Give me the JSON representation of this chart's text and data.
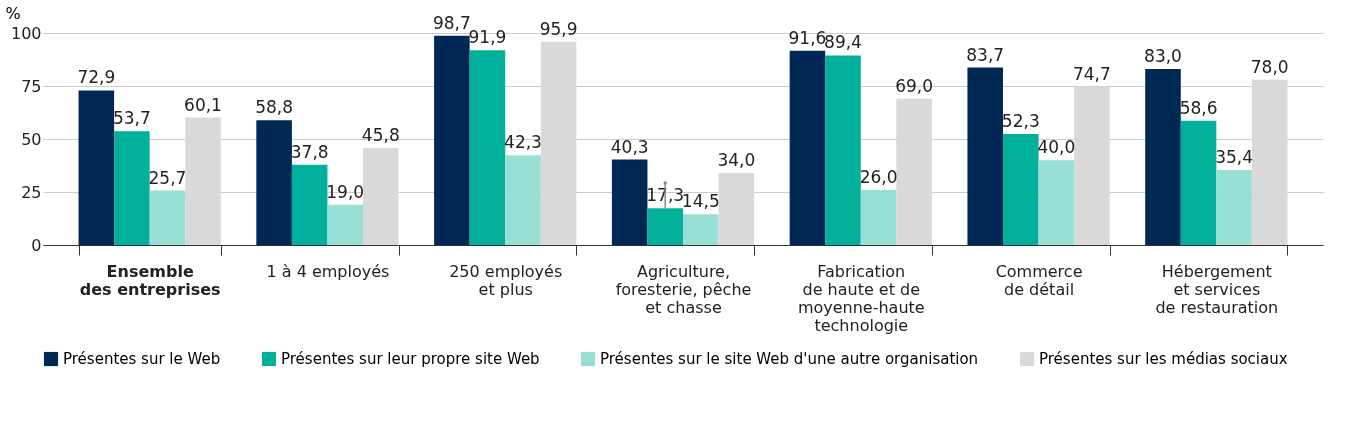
{
  "chart_data": {
    "type": "bar",
    "ylabel": "%",
    "categories": [
      "Ensemble\ndes entreprises",
      "1 à 4 employés",
      "250 employés\net plus",
      "Agriculture,\nforesterie, pêche\net chasse",
      "Fabrication\nde haute et de\nmoyenne-haute\ntechnologie",
      "Commerce\nde détail",
      "Hébergement\net services\nde restauration"
    ],
    "series": [
      {
        "name": "Présentes sur le Web",
        "color": "#002855",
        "values": [
          72.9,
          58.8,
          98.7,
          40.3,
          91.6,
          83.7,
          83.0
        ],
        "value_labels": [
          "72,9",
          "58,8",
          "98,7",
          "40,3",
          "91,6",
          "83,7",
          "83,0"
        ]
      },
      {
        "name": "Présentes sur leur propre site Web",
        "color": "#00b09b",
        "values": [
          53.7,
          37.8,
          91.9,
          17.3,
          89.4,
          52.3,
          58.6
        ],
        "value_labels": [
          "53,7",
          "37,8",
          "91,9",
          "17,3",
          "89,4",
          "52,3",
          "58,6"
        ],
        "errors": [
          null,
          null,
          null,
          [
            17.3,
            29.2
          ],
          null,
          null,
          null
        ]
      },
      {
        "name": "Présentes sur le site Web d'une autre organisation",
        "color": "#98e0d6",
        "values": [
          25.7,
          19.0,
          42.3,
          14.5,
          26.0,
          40.0,
          35.4
        ],
        "value_labels": [
          "25,7",
          "19,0",
          "42,3",
          "14,5",
          "26,0",
          "40,0",
          "35,4"
        ]
      },
      {
        "name": "Présentes sur les médias sociaux",
        "color": "#d9d9d9",
        "values": [
          60.1,
          45.8,
          95.9,
          34.0,
          69.0,
          74.7,
          78.0
        ],
        "value_labels": [
          "60,1",
          "45,8",
          "95,9",
          "34,0",
          "69,0",
          "74,7",
          "78,0"
        ]
      }
    ],
    "ylim": [
      0,
      100
    ],
    "yticks": [
      0,
      25,
      50,
      75,
      100
    ],
    "grid": "y",
    "legend": "bottom"
  }
}
